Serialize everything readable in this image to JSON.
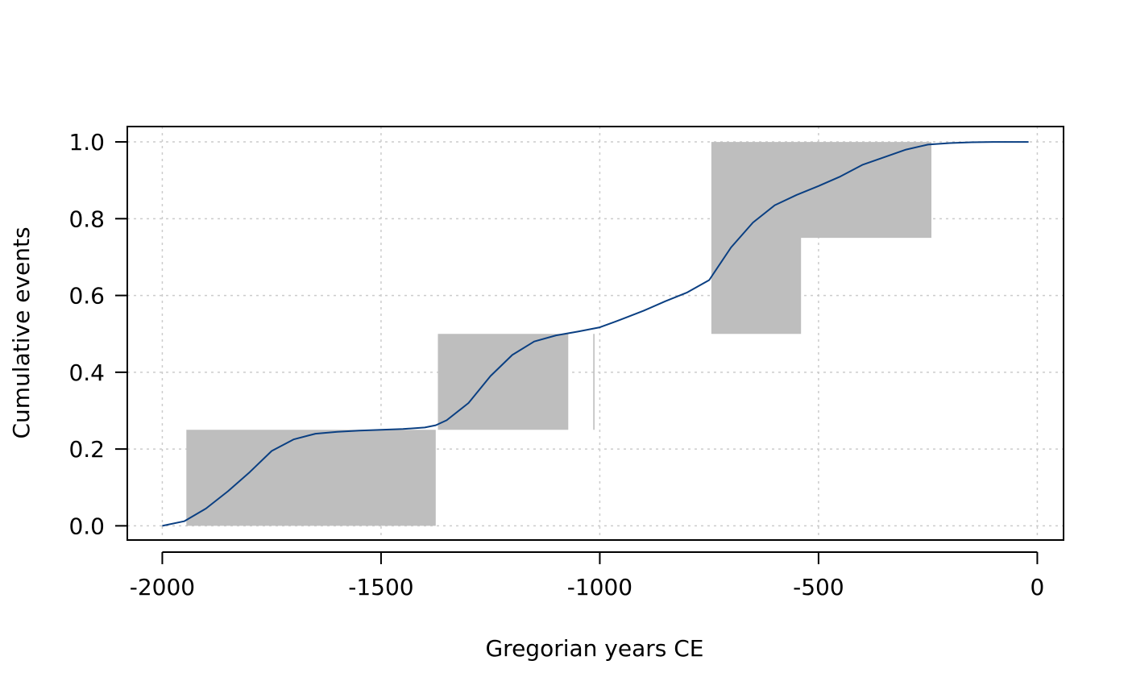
{
  "chart_data": {
    "type": "line",
    "title": "",
    "xlabel": "Gregorian years CE",
    "ylabel": "Cumulative events",
    "xlim": [
      -2080,
      60
    ],
    "ylim": [
      -0.037,
      1.04
    ],
    "x_ticks": [
      -2000,
      -1500,
      -1000,
      -500,
      0
    ],
    "x_tick_labels": [
      "-2000",
      "-1500",
      "-1000",
      "-500",
      "0"
    ],
    "y_ticks": [
      0.0,
      0.2,
      0.4,
      0.6,
      0.8,
      1.0
    ],
    "y_tick_labels": [
      "0.0",
      "0.2",
      "0.4",
      "0.6",
      "0.8",
      "1.0"
    ],
    "grid": true,
    "colors": {
      "band": "#bebebe",
      "line": "#0a3f82",
      "grid": "#cccccc"
    },
    "band": {
      "name": "envelope",
      "x": [
        -1945,
        -1945,
        -1625,
        -1625,
        -1375,
        -1375,
        -1378,
        -1378,
        -1370,
        -1370,
        -1075,
        -1075,
        -1015,
        -1015,
        -1012,
        -1012,
        -745,
        -745,
        -242,
        -242,
        -245,
        -245,
        -540,
        -540,
        -1008,
        -1008,
        -1010,
        -1010,
        -1072,
        -1072,
        -1372,
        -1372,
        -1375,
        -1375,
        -1630,
        -1630,
        -1940
      ],
      "y": [
        0.0,
        0.25,
        0.25,
        0.25,
        0.25,
        0.0,
        0.25,
        0.25,
        0.25,
        0.5,
        0.5,
        0.5,
        0.5,
        0.25,
        0.25,
        0.5,
        0.5,
        1.0,
        1.0,
        0.75,
        0.75,
        0.75,
        0.75,
        0.5,
        0.5,
        0.5,
        0.5,
        0.5,
        0.5,
        0.25,
        0.25,
        0.25,
        0.25,
        0.0,
        0.0,
        0.0,
        0.0
      ]
    },
    "series": [
      {
        "name": "cumulative",
        "x": [
          -2000,
          -1950,
          -1900,
          -1850,
          -1800,
          -1750,
          -1700,
          -1650,
          -1600,
          -1550,
          -1500,
          -1450,
          -1400,
          -1375,
          -1350,
          -1300,
          -1250,
          -1200,
          -1150,
          -1100,
          -1050,
          -1000,
          -950,
          -900,
          -850,
          -800,
          -750,
          -700,
          -650,
          -600,
          -550,
          -500,
          -450,
          -400,
          -350,
          -300,
          -250,
          -200,
          -150,
          -100,
          -50,
          -20
        ],
        "y": [
          0.0,
          0.012,
          0.045,
          0.09,
          0.14,
          0.195,
          0.225,
          0.24,
          0.245,
          0.248,
          0.25,
          0.252,
          0.256,
          0.262,
          0.275,
          0.32,
          0.39,
          0.445,
          0.48,
          0.496,
          0.506,
          0.517,
          0.538,
          0.56,
          0.585,
          0.608,
          0.64,
          0.725,
          0.79,
          0.835,
          0.862,
          0.885,
          0.91,
          0.94,
          0.96,
          0.98,
          0.993,
          0.997,
          0.999,
          1.0,
          1.0,
          1.0
        ]
      }
    ]
  }
}
